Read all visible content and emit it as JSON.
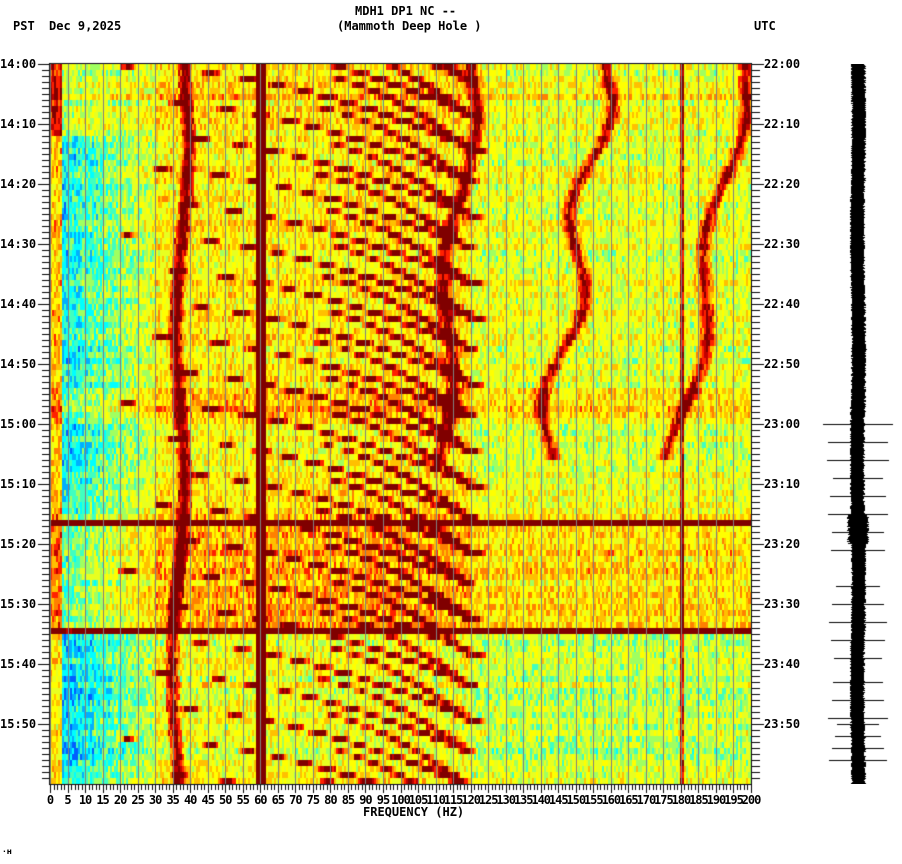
{
  "header": {
    "station_line": "MDH1 DP1 NC --",
    "site_line": "(Mammoth Deep Hole )",
    "left_tz": "PST",
    "date": "Dec 9,2025",
    "right_tz": "UTC"
  },
  "footer_mark": "·ʜ",
  "colors": {
    "grid": "#808080",
    "axis": "#000000",
    "colormap": [
      "#0060ff",
      "#00b0ff",
      "#00ffff",
      "#40ffc0",
      "#a0ff60",
      "#e8ff20",
      "#ffff00",
      "#ffc000",
      "#ff8000",
      "#ff2000",
      "#c00000",
      "#800000"
    ]
  },
  "chart_data": {
    "type": "heatmap",
    "title": "MDH1 DP1 NC -- (Mammoth Deep Hole )",
    "subtitle": "PST Dec 9,2025 / UTC",
    "xlabel": "FREQUENCY (HZ)",
    "ylabel_left": "PST",
    "ylabel_right": "UTC",
    "xlim": [
      0,
      200
    ],
    "x_ticks": [
      0,
      5,
      10,
      15,
      20,
      25,
      30,
      35,
      40,
      45,
      50,
      55,
      60,
      65,
      70,
      75,
      80,
      85,
      90,
      95,
      100,
      105,
      110,
      115,
      120,
      125,
      130,
      135,
      140,
      145,
      150,
      155,
      160,
      165,
      170,
      175,
      180,
      185,
      190,
      195,
      200
    ],
    "y_ticks_left": [
      "14:00",
      "14:10",
      "14:20",
      "14:30",
      "14:40",
      "14:50",
      "15:00",
      "15:10",
      "15:20",
      "15:30",
      "15:40",
      "15:50"
    ],
    "y_ticks_right": [
      "22:00",
      "22:10",
      "22:20",
      "22:30",
      "22:40",
      "22:50",
      "23:00",
      "23:10",
      "23:20",
      "23:30",
      "23:40",
      "23:50"
    ],
    "time_range_minutes": 120,
    "grid_vertical_every_hz": 5,
    "features": {
      "constant_line_hz": [
        60,
        180
      ],
      "broadband_bursts_minutes": [
        76,
        94
      ],
      "glide_streaks": "repeating upward-curving frequency glides (~every 5-6 min) from ~25 Hz to ~120 Hz",
      "wandering_lines_hz": [
        38,
        118,
        160,
        198
      ],
      "low_noise_band_hz": [
        0,
        4
      ]
    },
    "side_panel": "seismogram trace (black) with spikes after 15:00 PST"
  }
}
